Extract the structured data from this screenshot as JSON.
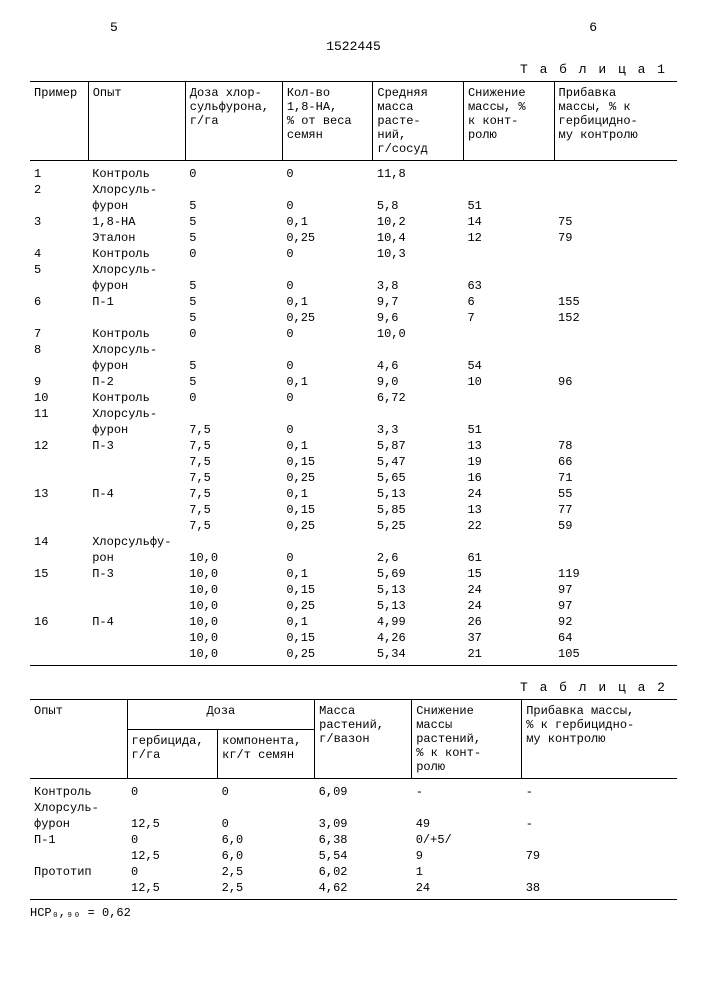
{
  "page_left": "5",
  "page_right": "6",
  "doc_number": "1522445",
  "table1": {
    "label": "Т а б л и ц а  1",
    "headers": {
      "c1": "Пример",
      "c2": "Опыт",
      "c3": "Доза хлор-\nсульфурона,\nг/га",
      "c4": "Кол-во\n1,8-НА,\n% от веса\nсемян",
      "c5": "Средняя\nмасса\nрасте-\nний,\nг/сосуд",
      "c6": "Снижение\nмассы, %\nк конт-\nролю",
      "c7": "Прибавка\nмассы, % к\nгербицидно-\nму контролю"
    },
    "rows": [
      [
        "1",
        "Контроль",
        "0",
        "0",
        "11,8",
        "",
        ""
      ],
      [
        "2",
        "Хлорсуль-",
        "",
        "",
        "",
        "",
        ""
      ],
      [
        "",
        "фурон",
        "5",
        "0",
        "5,8",
        "51",
        ""
      ],
      [
        "3",
        "1,8-НА",
        "5",
        "0,1",
        "10,2",
        "14",
        "75"
      ],
      [
        "",
        "Эталон",
        "5",
        "0,25",
        "10,4",
        "12",
        "79"
      ],
      [
        "4",
        "Контроль",
        "0",
        "0",
        "10,3",
        "",
        ""
      ],
      [
        "5",
        "Хлорсуль-",
        "",
        "",
        "",
        "",
        ""
      ],
      [
        "",
        "фурон",
        "5",
        "0",
        "3,8",
        "63",
        ""
      ],
      [
        "6",
        "П-1",
        "5",
        "0,1",
        "9,7",
        "6",
        "155"
      ],
      [
        "",
        "",
        "5",
        "0,25",
        "9,6",
        "7",
        "152"
      ],
      [
        "7",
        "Контроль",
        "0",
        "0",
        "10,0",
        "",
        ""
      ],
      [
        "8",
        "Хлорсуль-",
        "",
        "",
        "",
        "",
        ""
      ],
      [
        "",
        "фурон",
        "5",
        "0",
        "4,6",
        "54",
        ""
      ],
      [
        "9",
        "П-2",
        "5",
        "0,1",
        "9,0",
        "10",
        "96"
      ],
      [
        "10",
        "Контроль",
        "0",
        "0",
        "6,72",
        "",
        ""
      ],
      [
        "11",
        "Хлорсуль-",
        "",
        "",
        "",
        "",
        ""
      ],
      [
        "",
        "фурон",
        "7,5",
        "0",
        "3,3",
        "51",
        ""
      ],
      [
        "12",
        "П-3",
        "7,5",
        "0,1",
        "5,87",
        "13",
        "78"
      ],
      [
        "",
        "",
        "7,5",
        "0,15",
        "5,47",
        "19",
        "66"
      ],
      [
        "",
        "",
        "7,5",
        "0,25",
        "5,65",
        "16",
        "71"
      ],
      [
        "13",
        "П-4",
        "7,5",
        "0,1",
        "5,13",
        "24",
        "55"
      ],
      [
        "",
        "",
        "7,5",
        "0,15",
        "5,85",
        "13",
        "77"
      ],
      [
        "",
        "",
        "7,5",
        "0,25",
        "5,25",
        "22",
        "59"
      ],
      [
        "14",
        "Хлорсульфу-",
        "",
        "",
        "",
        "",
        ""
      ],
      [
        "",
        "рон",
        "10,0",
        "0",
        "2,6",
        "61",
        ""
      ],
      [
        "15",
        "П-3",
        "10,0",
        "0,1",
        "5,69",
        "15",
        "119"
      ],
      [
        "",
        "",
        "10,0",
        "0,15",
        "5,13",
        "24",
        "97"
      ],
      [
        "",
        "",
        "10,0",
        "0,25",
        "5,13",
        "24",
        "97"
      ],
      [
        "16",
        "П-4",
        "10,0",
        "0,1",
        "4,99",
        "26",
        "92"
      ],
      [
        "",
        "",
        "10,0",
        "0,15",
        "4,26",
        "37",
        "64"
      ],
      [
        "",
        "",
        "10,0",
        "0,25",
        "5,34",
        "21",
        "105"
      ]
    ]
  },
  "table2": {
    "label": "Т а б л и ц а  2",
    "headers": {
      "c1": "Опыт",
      "c2_group": "Доза",
      "c2a": "гербицида,\nг/га",
      "c2b": "компонента,\nкг/т семян",
      "c3": "Масса\nрастений,\nг/вазон",
      "c4": "Снижение\nмассы\nрастений,\n% к конт-\nролю",
      "c5": "Прибавка массы,\n% к гербицидно-\nму контролю"
    },
    "rows": [
      [
        "Контроль",
        "0",
        "0",
        "6,09",
        "-",
        "-"
      ],
      [
        "Хлорсуль-",
        "",
        "",
        "",
        "",
        ""
      ],
      [
        "фурон",
        "12,5",
        "0",
        "3,09",
        "49",
        "-"
      ],
      [
        "П-1",
        "0",
        "6,0",
        "6,38",
        "0/+5/",
        ""
      ],
      [
        "",
        "12,5",
        "6,0",
        "5,54",
        "9",
        "79"
      ],
      [
        "Прототип",
        "0",
        "2,5",
        "6,02",
        "1",
        ""
      ],
      [
        "",
        "12,5",
        "2,5",
        "4,62",
        "24",
        "38"
      ]
    ]
  },
  "footnote": "НСР₀,₉₀ = 0,62"
}
